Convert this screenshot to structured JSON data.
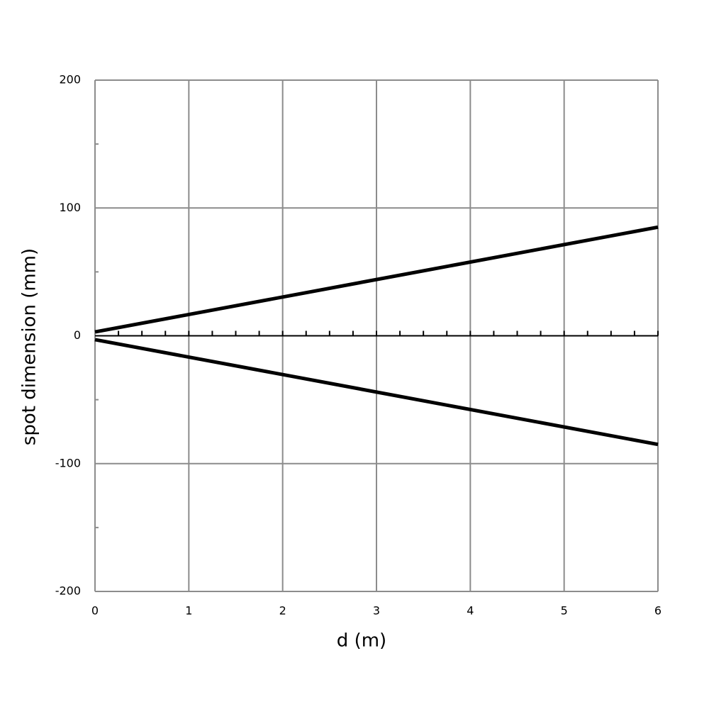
{
  "chart_data": {
    "type": "line",
    "x_label": "d (m)",
    "y_label": "spot dimension (mm)",
    "x": [
      0,
      6
    ],
    "series": [
      {
        "color": "#000000",
        "values": [
          3,
          85
        ]
      },
      {
        "color": "#000000",
        "values": [
          -3,
          -85
        ]
      }
    ],
    "xlim": [
      0,
      6
    ],
    "xticks": [
      0,
      1,
      2,
      3,
      4,
      5,
      6
    ],
    "ylim": [
      -200,
      200
    ],
    "yticks": [
      -200,
      -100,
      0,
      100,
      200
    ],
    "grid": true
  }
}
